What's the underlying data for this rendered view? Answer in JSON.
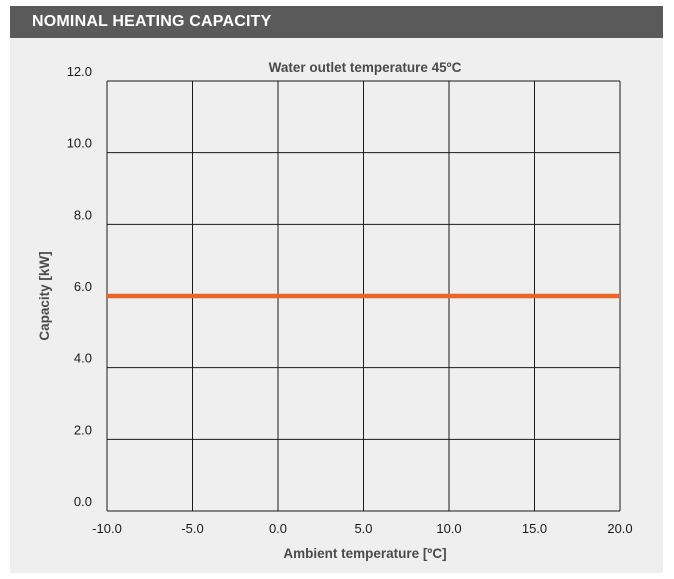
{
  "header": {
    "title": "NOMINAL HEATING CAPACITY"
  },
  "colors": {
    "header_bg": "#5a5a5a",
    "panel_bg": "#efefef",
    "series": "#e8662a",
    "grid": "#1a1a1a"
  },
  "chart_data": {
    "type": "line",
    "title": "Water outlet temperature 45ºC",
    "xlabel": "Ambient temperature [ºC]",
    "ylabel": "Capacity [kW]",
    "xlim": [
      -10,
      20
    ],
    "ylim": [
      0,
      12
    ],
    "x_ticks": [
      "-10.0",
      "-5.0",
      "0.0",
      "5.0",
      "10.0",
      "15.0",
      "20.0"
    ],
    "y_ticks": [
      "0.0",
      "2.0",
      "4.0",
      "6.0",
      "8.0",
      "10.0",
      "12.0"
    ],
    "grid": true,
    "series": [
      {
        "x": [
          -10,
          -5,
          0,
          5,
          10,
          15,
          20
        ],
        "y": [
          6.0,
          6.0,
          6.0,
          6.0,
          6.0,
          6.0,
          6.0
        ],
        "color": "#e8662a"
      }
    ]
  }
}
